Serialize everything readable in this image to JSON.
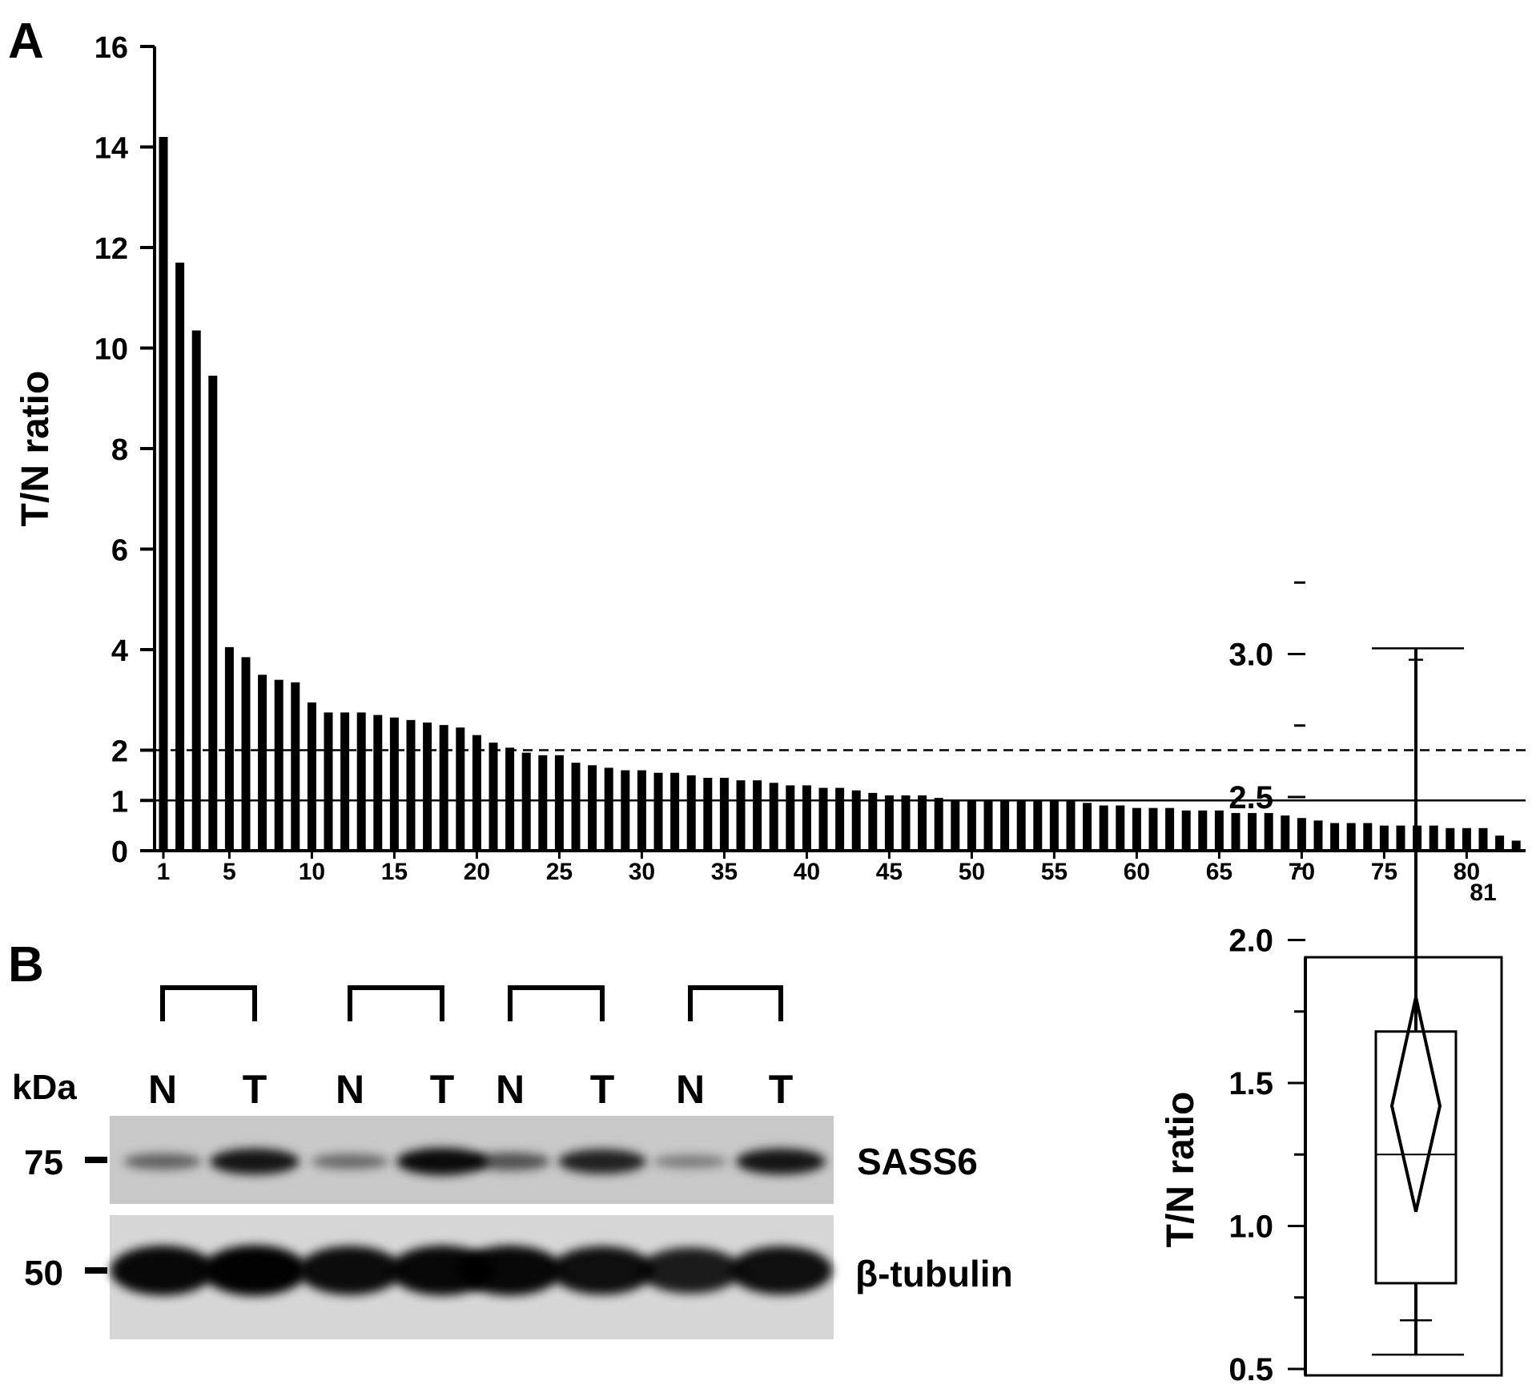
{
  "panels": {
    "a": {
      "label": "A"
    },
    "b": {
      "label": "B"
    }
  },
  "blot": {
    "kda_label": "kDa",
    "lane_labels": [
      "N",
      "T",
      "N",
      "T",
      "N",
      "T",
      "N",
      "T"
    ],
    "markers": [
      "75",
      "50"
    ],
    "bands": [
      "SASS6",
      "β-tubulin"
    ],
    "sass6_intensity": [
      0.35,
      0.85,
      0.3,
      0.92,
      0.45,
      0.78,
      0.18,
      0.85
    ],
    "tubulin_intensity": [
      0.95,
      0.98,
      0.92,
      0.95,
      0.95,
      0.9,
      0.82,
      0.9
    ]
  },
  "chart_data": [
    {
      "type": "bar",
      "ylabel": "T/N ratio",
      "xlabel": "",
      "ylim": [
        0,
        16
      ],
      "yticks": [
        0,
        1,
        2,
        4,
        6,
        8,
        10,
        12,
        14,
        16
      ],
      "xticks": [
        1,
        5,
        10,
        15,
        20,
        25,
        30,
        35,
        40,
        45,
        50,
        55,
        60,
        65,
        70,
        75,
        80,
        81
      ],
      "reference_lines": [
        {
          "y": 2,
          "style": "dashed"
        },
        {
          "y": 1,
          "style": "solid"
        }
      ],
      "values": [
        14.2,
        11.7,
        10.35,
        9.45,
        4.05,
        3.85,
        3.5,
        3.4,
        3.35,
        2.95,
        2.75,
        2.75,
        2.75,
        2.7,
        2.65,
        2.6,
        2.55,
        2.5,
        2.45,
        2.3,
        2.15,
        2.05,
        1.95,
        1.9,
        1.9,
        1.75,
        1.7,
        1.65,
        1.6,
        1.6,
        1.55,
        1.55,
        1.5,
        1.45,
        1.45,
        1.4,
        1.4,
        1.35,
        1.3,
        1.3,
        1.25,
        1.25,
        1.2,
        1.15,
        1.1,
        1.1,
        1.1,
        1.05,
        1.0,
        1.0,
        1.0,
        1.0,
        1.0,
        1.0,
        1.0,
        1.0,
        0.95,
        0.9,
        0.9,
        0.85,
        0.85,
        0.85,
        0.8,
        0.8,
        0.8,
        0.75,
        0.75,
        0.75,
        0.7,
        0.65,
        0.6,
        0.55,
        0.55,
        0.55,
        0.5,
        0.5,
        0.5,
        0.5,
        0.45,
        0.45,
        0.45,
        0.3,
        0.2
      ]
    },
    {
      "type": "box",
      "ylabel": "T/N ratio",
      "ylim": [
        0.5,
        3.25
      ],
      "yticks": [
        "0.5",
        "1.0",
        "1.5",
        "2.0",
        "2.5",
        "3.0"
      ],
      "whisker_low": 0.55,
      "q1": 0.8,
      "median": 1.25,
      "q3": 1.68,
      "whisker_high": 3.02,
      "mean": 1.42,
      "mean_ci": [
        1.05,
        1.8
      ],
      "extra_tick": 0.67
    }
  ]
}
